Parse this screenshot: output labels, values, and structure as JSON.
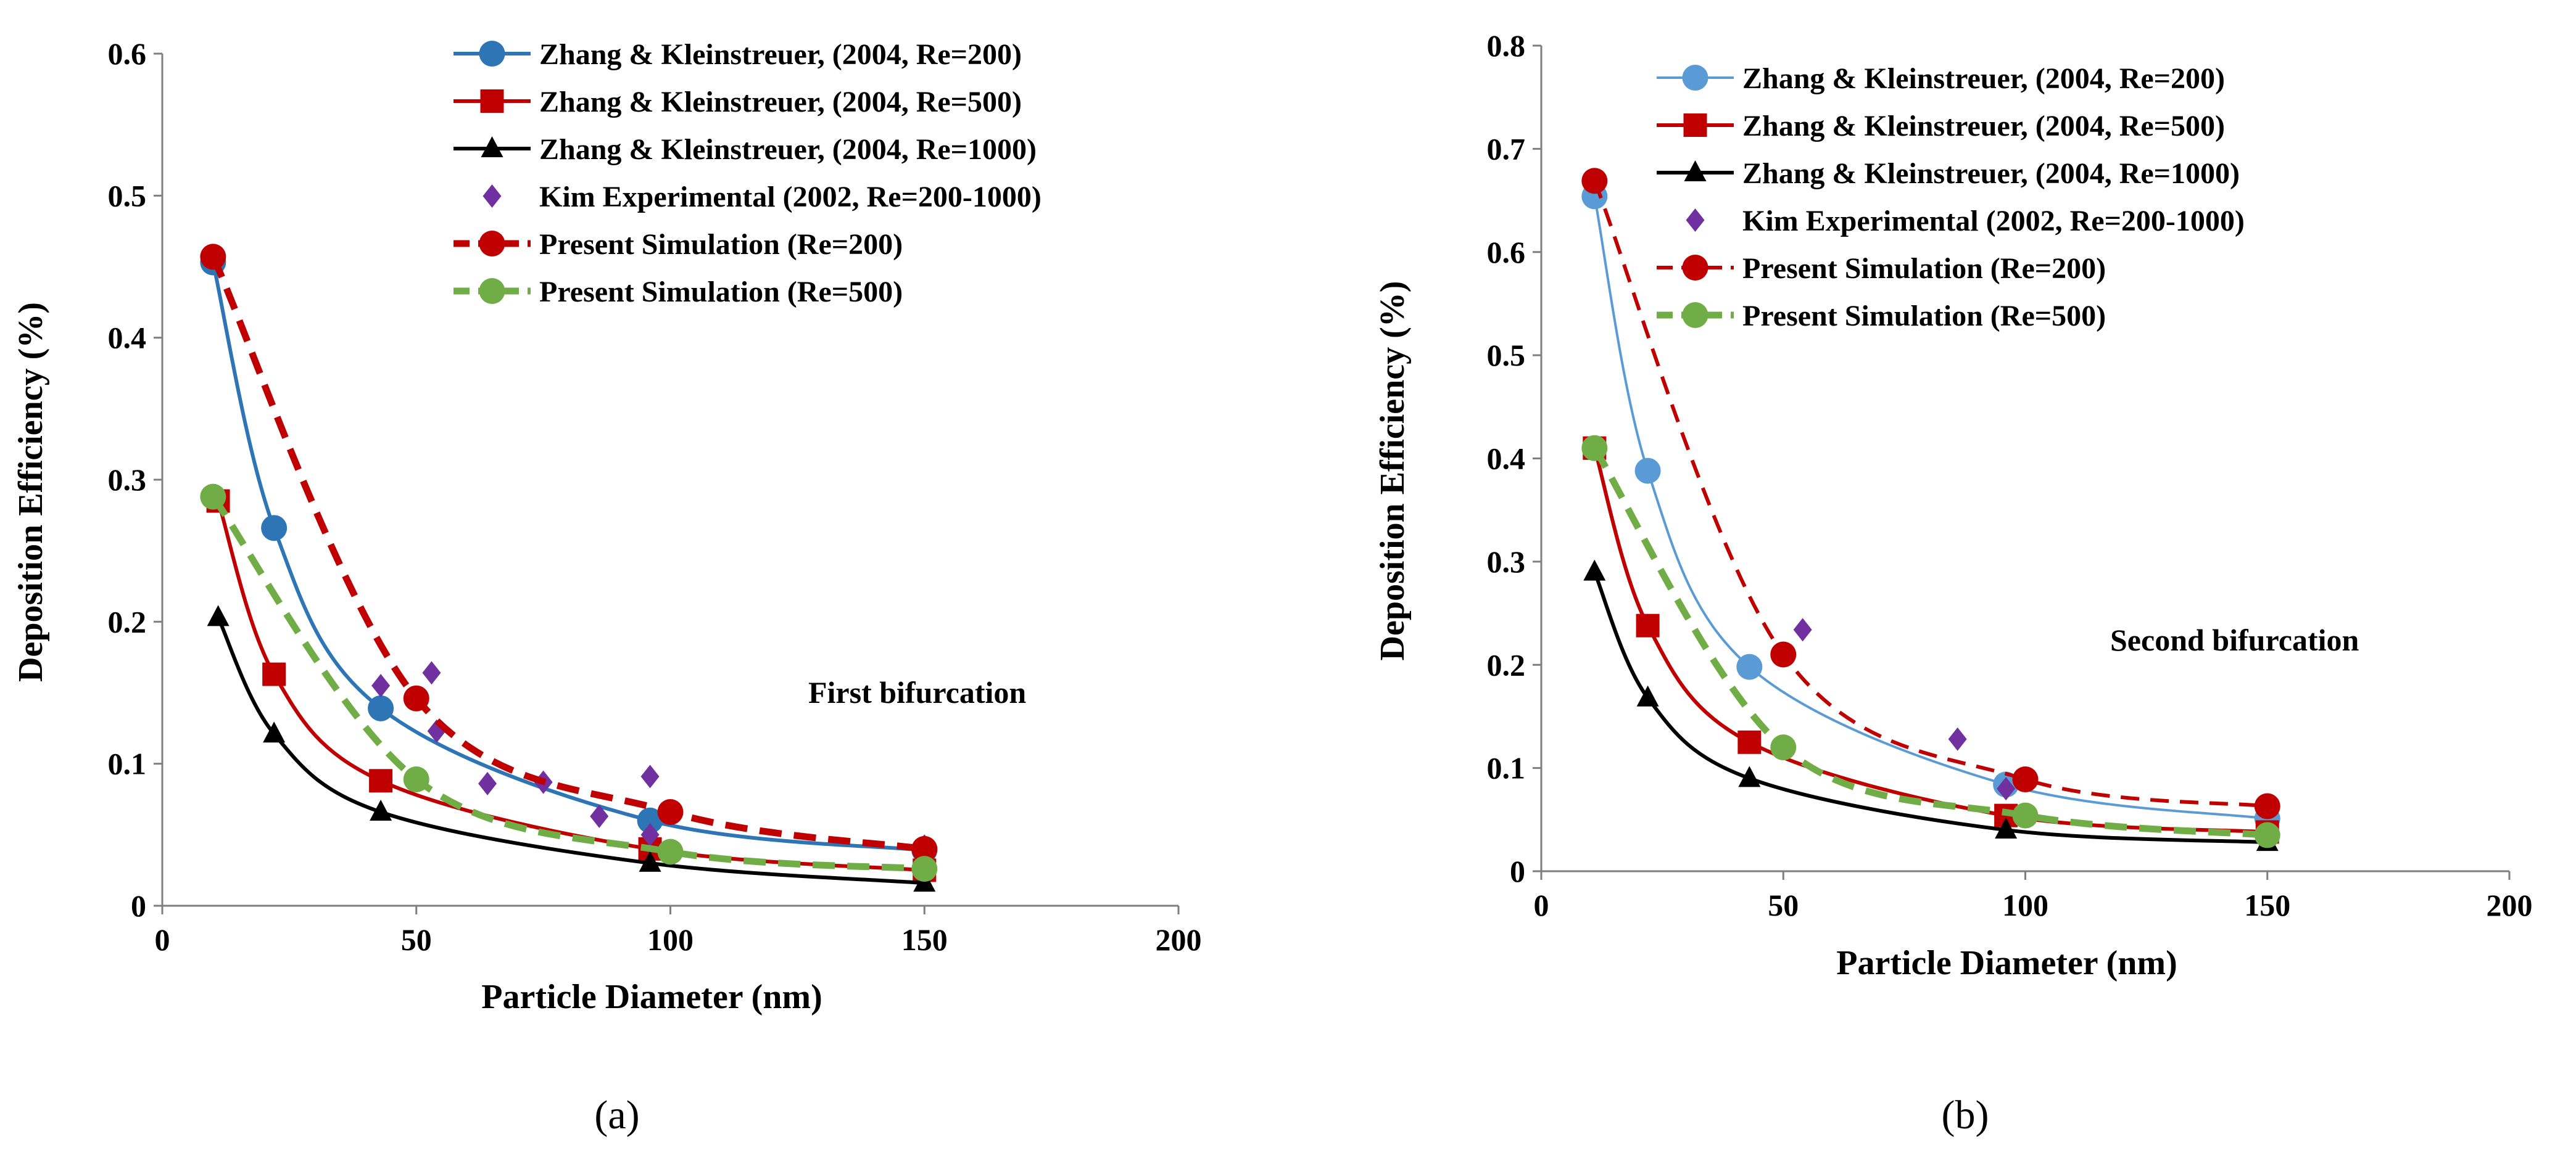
{
  "figure": {
    "panel_labels": [
      "(a)",
      "(b)"
    ]
  },
  "chart_data": [
    {
      "type": "line",
      "panel": "(a)",
      "title": "",
      "annotation": "First bifurcation",
      "xlabel": "Particle Diameter (nm)",
      "ylabel": "Deposition Efficiency (%)",
      "xlim": [
        0,
        200
      ],
      "ylim": [
        0,
        0.6
      ],
      "xticks": [
        0,
        50,
        100,
        150,
        200
      ],
      "yticks": [
        0,
        0.1,
        0.2,
        0.3,
        0.4,
        0.5,
        0.6
      ],
      "ytick_labels": [
        "0",
        "0.1",
        "0.2",
        "0.3",
        "0.4",
        "0.5",
        "0.6"
      ],
      "legend_position": "top-right",
      "series": [
        {
          "name": "Zhang & Kleinstreuer, (2004, Re=200)",
          "color": "#2e75b6",
          "marker": "circle",
          "line": "solid",
          "smooth": true,
          "x": [
            10,
            22,
            43,
            96,
            150
          ],
          "y": [
            0.453,
            0.266,
            0.139,
            0.06,
            0.039
          ]
        },
        {
          "name": "Zhang & Kleinstreuer, (2004, Re=500)",
          "color": "#c00000",
          "marker": "square",
          "line": "solid",
          "smooth": true,
          "x": [
            11,
            22,
            43,
            96,
            150
          ],
          "y": [
            0.285,
            0.163,
            0.088,
            0.04,
            0.025
          ]
        },
        {
          "name": "Zhang & Kleinstreuer, (2004, Re=1000)",
          "color": "#000000",
          "marker": "triangle",
          "line": "solid",
          "smooth": true,
          "x": [
            11,
            22,
            43,
            96,
            150
          ],
          "y": [
            0.203,
            0.121,
            0.066,
            0.03,
            0.016
          ]
        },
        {
          "name": "Kim Experimental (2002, Re=200-1000)",
          "color": "#7030a0",
          "marker": "diamond",
          "line": "none",
          "smooth": false,
          "x": [
            43,
            53,
            54,
            64,
            75,
            86,
            96,
            96,
            150
          ],
          "y": [
            0.155,
            0.164,
            0.123,
            0.086,
            0.087,
            0.063,
            0.091,
            0.05,
            0.042
          ]
        },
        {
          "name": "Present Simulation (Re=200)",
          "color": "#c00000",
          "marker": "circle",
          "line": "dashed-thick",
          "smooth": true,
          "x": [
            10,
            50,
            100,
            150
          ],
          "y": [
            0.457,
            0.146,
            0.066,
            0.04
          ]
        },
        {
          "name": "Present Simulation (Re=500)",
          "color": "#70ad47",
          "marker": "circle",
          "line": "dashed-thick",
          "smooth": true,
          "x": [
            10,
            50,
            100,
            150
          ],
          "y": [
            0.288,
            0.089,
            0.038,
            0.026
          ]
        }
      ]
    },
    {
      "type": "line",
      "panel": "(b)",
      "title": "",
      "annotation": "Second bifurcation",
      "xlabel": "Particle Diameter (nm)",
      "ylabel": "Deposition Efficiency (%)",
      "xlim": [
        0,
        200
      ],
      "ylim": [
        0,
        0.8
      ],
      "xticks": [
        0,
        50,
        100,
        150,
        200
      ],
      "yticks": [
        0,
        0.1,
        0.2,
        0.3,
        0.4,
        0.5,
        0.6,
        0.7,
        0.8
      ],
      "ytick_labels": [
        "0",
        "0.1",
        "0.2",
        "0.3",
        "0.4",
        "0.5",
        "0.6",
        "0.7",
        "0.8"
      ],
      "legend_position": "top-right",
      "series": [
        {
          "name": "Zhang & Kleinstreuer, (2004, Re=200)",
          "color": "#5b9bd5",
          "marker": "circle",
          "line": "solid-thin",
          "smooth": true,
          "x": [
            11,
            22,
            43,
            96,
            150
          ],
          "y": [
            0.654,
            0.388,
            0.198,
            0.084,
            0.051
          ]
        },
        {
          "name": "Zhang & Kleinstreuer, (2004, Re=500)",
          "color": "#c00000",
          "marker": "square",
          "line": "solid",
          "smooth": true,
          "x": [
            11,
            22,
            43,
            96,
            150
          ],
          "y": [
            0.41,
            0.238,
            0.125,
            0.054,
            0.038
          ]
        },
        {
          "name": "Zhang & Kleinstreuer, (2004, Re=1000)",
          "color": "#000000",
          "marker": "triangle",
          "line": "solid",
          "smooth": true,
          "x": [
            11,
            22,
            43,
            96,
            150
          ],
          "y": [
            0.29,
            0.168,
            0.09,
            0.04,
            0.028
          ]
        },
        {
          "name": "Kim Experimental (2002, Re=200-1000)",
          "color": "#7030a0",
          "marker": "diamond",
          "line": "none",
          "smooth": false,
          "x": [
            54,
            86,
            96
          ],
          "y": [
            0.234,
            0.128,
            0.08
          ]
        },
        {
          "name": "Present Simulation (Re=200)",
          "color": "#c00000",
          "marker": "circle",
          "line": "dashed",
          "smooth": true,
          "x": [
            11,
            50,
            100,
            150
          ],
          "y": [
            0.669,
            0.21,
            0.089,
            0.063
          ]
        },
        {
          "name": "Present Simulation (Re=500)",
          "color": "#70ad47",
          "marker": "circle",
          "line": "dashed-thick",
          "smooth": true,
          "x": [
            11,
            50,
            100,
            150
          ],
          "y": [
            0.41,
            0.12,
            0.054,
            0.035
          ]
        }
      ]
    }
  ]
}
